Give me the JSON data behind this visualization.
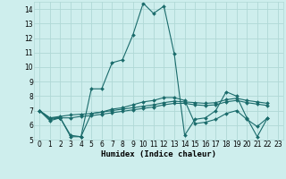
{
  "xlabel": "Humidex (Indice chaleur)",
  "bg_color": "#ceeeed",
  "grid_color": "#b0d8d6",
  "line_color": "#1a6b6b",
  "xlim": [
    -0.5,
    23.5
  ],
  "ylim": [
    5,
    14.5
  ],
  "yticks": [
    5,
    6,
    7,
    8,
    9,
    10,
    11,
    12,
    13,
    14
  ],
  "xticks": [
    0,
    1,
    2,
    3,
    4,
    5,
    6,
    7,
    8,
    9,
    10,
    11,
    12,
    13,
    14,
    15,
    16,
    17,
    18,
    19,
    20,
    21,
    22,
    23
  ],
  "series": [
    {
      "x": [
        0,
        1,
        2,
        3,
        4,
        5,
        6,
        7,
        8,
        9,
        10,
        11,
        12,
        13,
        14,
        15,
        16,
        17,
        18,
        19,
        20,
        21,
        22
      ],
      "y": [
        7.0,
        6.3,
        6.5,
        5.2,
        5.2,
        8.5,
        8.5,
        10.3,
        10.5,
        12.2,
        14.4,
        13.7,
        14.2,
        10.9,
        5.3,
        6.4,
        6.5,
        7.0,
        8.3,
        8.0,
        6.5,
        5.2,
        6.5
      ]
    },
    {
      "x": [
        0,
        1,
        2,
        3,
        4,
        5,
        6,
        7,
        8,
        9,
        10,
        11,
        12,
        13,
        14,
        15,
        16,
        17,
        18,
        19,
        20,
        21,
        22
      ],
      "y": [
        7.0,
        6.5,
        6.6,
        6.7,
        6.75,
        6.8,
        6.9,
        7.0,
        7.1,
        7.2,
        7.3,
        7.4,
        7.55,
        7.65,
        7.6,
        7.55,
        7.5,
        7.55,
        7.75,
        7.85,
        7.7,
        7.6,
        7.5
      ]
    },
    {
      "x": [
        0,
        1,
        2,
        3,
        4,
        5,
        6,
        7,
        8,
        9,
        10,
        11,
        12,
        13,
        14,
        15,
        16,
        17,
        18,
        19,
        20,
        21,
        22
      ],
      "y": [
        7.0,
        6.5,
        6.5,
        6.5,
        6.6,
        6.65,
        6.75,
        6.85,
        6.95,
        7.05,
        7.15,
        7.25,
        7.4,
        7.5,
        7.5,
        7.4,
        7.35,
        7.4,
        7.6,
        7.7,
        7.55,
        7.45,
        7.35
      ]
    },
    {
      "x": [
        0,
        1,
        2,
        3,
        4,
        5,
        6,
        7,
        8,
        9,
        10,
        11,
        12,
        13,
        14,
        15,
        16,
        17,
        18,
        19,
        20,
        21,
        22
      ],
      "y": [
        7.0,
        6.4,
        6.5,
        5.3,
        5.2,
        6.8,
        6.9,
        7.1,
        7.2,
        7.4,
        7.6,
        7.7,
        7.9,
        7.9,
        7.7,
        6.1,
        6.2,
        6.4,
        6.8,
        7.0,
        6.4,
        5.9,
        6.5
      ]
    }
  ]
}
